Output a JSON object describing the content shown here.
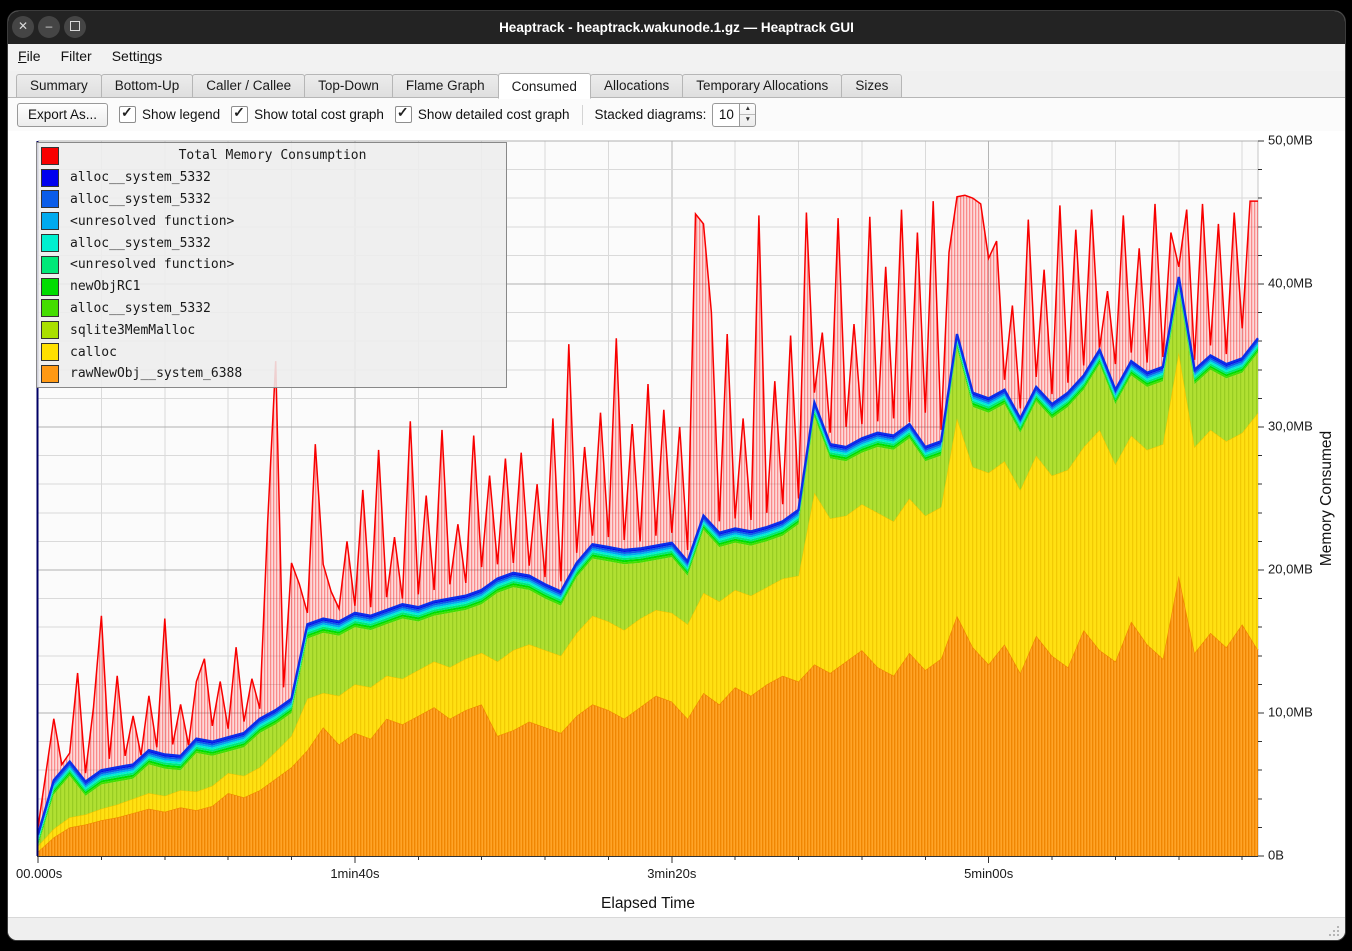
{
  "window": {
    "title": "Heaptrack - heaptrack.wakunode.1.gz — Heaptrack GUI",
    "controls": [
      "close",
      "minimize",
      "maximize"
    ]
  },
  "menu": {
    "items": [
      {
        "name": "file",
        "pre": "",
        "u": "F",
        "post": "ile"
      },
      {
        "name": "filter",
        "pre": "Filter",
        "u": "",
        "post": ""
      },
      {
        "name": "settings",
        "pre": "Setti",
        "u": "n",
        "post": "gs"
      }
    ]
  },
  "tabs": {
    "items": [
      "Summary",
      "Bottom-Up",
      "Caller / Callee",
      "Top-Down",
      "Flame Graph",
      "Consumed",
      "Allocations",
      "Temporary Allocations",
      "Sizes"
    ],
    "active_index": 5
  },
  "toolbar": {
    "export_label": "Export As...",
    "checkboxes": [
      {
        "label": "Show legend",
        "checked": true
      },
      {
        "label": "Show total cost graph",
        "checked": true
      },
      {
        "label": "Show detailed cost graph",
        "checked": true
      }
    ],
    "stacked_label": "Stacked diagrams:",
    "stacked_value": "10"
  },
  "legend": {
    "items": [
      {
        "label": "Total Memory Consumption",
        "color": "#f80000",
        "is_title": true
      },
      {
        "label": "alloc__system_5332",
        "color": "#0000ee"
      },
      {
        "label": "alloc__system_5332",
        "color": "#0a5ce8"
      },
      {
        "label": "<unresolved function>",
        "color": "#00aaee"
      },
      {
        "label": "alloc__system_5332",
        "color": "#00f0d0"
      },
      {
        "label": "<unresolved function>",
        "color": "#00e878"
      },
      {
        "label": "newObjRC1",
        "color": "#00dd00"
      },
      {
        "label": "alloc__system_5332",
        "color": "#44dd00"
      },
      {
        "label": "sqlite3MemMalloc",
        "color": "#aae000"
      },
      {
        "label": "calloc",
        "color": "#ffe000"
      },
      {
        "label": "rawNewObj__system_6388",
        "color": "#ff9913"
      }
    ]
  },
  "status_bar": {},
  "chart_data": {
    "type": "area",
    "stacked": true,
    "xlabel": "Elapsed Time",
    "ylabel": "Memory Consumed",
    "ylim": [
      0,
      50
    ],
    "x_max_s": 385,
    "y_major_ticks": [
      {
        "v": 0,
        "label": "0B"
      },
      {
        "v": 10,
        "label": "10,0MB"
      },
      {
        "v": 20,
        "label": "20,0MB"
      },
      {
        "v": 30,
        "label": "30,0MB"
      },
      {
        "v": 40,
        "label": "40,0MB"
      },
      {
        "v": 50,
        "label": "50,0MB"
      }
    ],
    "y_minor_step_mb": 2,
    "x_ticks": [
      {
        "s": 0,
        "label": "00.000s"
      },
      {
        "s": 100,
        "label": "1min40s"
      },
      {
        "s": 200,
        "label": "3min20s"
      },
      {
        "s": 300,
        "label": "5min00s"
      }
    ],
    "x_minor_step_s": 20,
    "grid": true,
    "legend_position": "top-left",
    "colors": {
      "total_line": "#f80000",
      "stack_top_line": "#0c2ee8",
      "axis_line_left": "#000066",
      "orange": "#ffa428",
      "orange_stripe": "#ef8400",
      "yellow": "#ffe012",
      "yellow_stripe": "#eec400",
      "chartreuse": "#b0e032",
      "chartreuse_stripe": "#93c81e",
      "red_fill": "rgba(255,80,80,0.20)",
      "red_stripe": "rgba(248,0,0,0.45)"
    },
    "series": {
      "x_step_s": 5,
      "stack_top_mb": [
        1.5,
        5.3,
        6.6,
        5.2,
        6.0,
        6.2,
        6.4,
        7.4,
        7.1,
        7.0,
        8.2,
        8.0,
        8.3,
        8.6,
        9.6,
        10.2,
        11.0,
        16.2,
        16.6,
        16.4,
        17.0,
        16.8,
        17.2,
        17.6,
        17.4,
        17.8,
        18.0,
        18.2,
        18.6,
        19.4,
        19.8,
        19.6,
        19.0,
        18.5,
        20.5,
        21.8,
        21.6,
        21.4,
        21.5,
        21.7,
        21.9,
        20.6,
        23.8,
        22.6,
        22.9,
        22.7,
        23.0,
        23.4,
        24.2,
        31.7,
        28.8,
        28.6,
        29.2,
        29.6,
        29.4,
        30.2,
        28.6,
        29.0,
        36.5,
        32.4,
        32.0,
        32.6,
        30.6,
        32.8,
        31.6,
        32.4,
        33.6,
        35.4,
        32.6,
        34.6,
        33.8,
        34.2,
        40.5,
        34.0,
        35.0,
        34.4,
        34.8,
        36.2
      ],
      "rawNewObj_top_mb": [
        0.3,
        1.3,
        2.0,
        2.2,
        2.5,
        2.7,
        3.0,
        3.3,
        3.1,
        3.4,
        3.2,
        3.5,
        4.4,
        4.1,
        4.6,
        5.4,
        6.2,
        7.4,
        9.0,
        7.8,
        8.6,
        8.2,
        9.6,
        9.2,
        9.8,
        10.4,
        9.6,
        10.2,
        10.6,
        8.4,
        8.8,
        9.4,
        9.0,
        8.6,
        9.8,
        10.6,
        10.2,
        9.6,
        10.4,
        11.2,
        10.8,
        9.6,
        11.4,
        10.6,
        11.8,
        11.2,
        12.0,
        12.6,
        12.2,
        13.4,
        12.8,
        13.6,
        14.4,
        13.2,
        12.6,
        14.2,
        13.0,
        13.8,
        16.8,
        14.6,
        13.4,
        14.8,
        12.8,
        15.4,
        14.0,
        13.2,
        15.8,
        14.4,
        13.6,
        16.4,
        14.8,
        13.8,
        19.6,
        14.2,
        15.6,
        14.6,
        16.2,
        14.4
      ],
      "calloc_top_mb": [
        0.7,
        1.9,
        2.7,
        2.9,
        3.3,
        3.6,
        4.0,
        4.4,
        4.2,
        4.6,
        4.5,
        4.9,
        5.8,
        5.6,
        6.2,
        7.3,
        8.4,
        11.0,
        11.4,
        11.2,
        12.0,
        11.8,
        12.6,
        12.4,
        13.0,
        13.6,
        13.2,
        13.8,
        14.2,
        13.6,
        14.4,
        14.8,
        14.4,
        14.0,
        15.6,
        16.8,
        16.4,
        15.8,
        16.6,
        17.2,
        17.0,
        16.2,
        18.4,
        17.8,
        18.6,
        18.2,
        18.8,
        19.4,
        19.6,
        25.4,
        23.6,
        23.8,
        24.6,
        24.0,
        23.4,
        25.0,
        23.8,
        24.4,
        30.6,
        27.2,
        26.8,
        27.6,
        25.6,
        28.0,
        26.6,
        27.0,
        28.6,
        29.8,
        27.4,
        29.4,
        28.4,
        28.8,
        35.2,
        28.6,
        29.8,
        29.0,
        29.6,
        31.0
      ],
      "thin_bands_below_top": [
        {
          "name": "alloc__system_5332",
          "color": "#44dd00",
          "mb": 0.14
        },
        {
          "name": "newObjRC1",
          "color": "#00dd00",
          "mb": 0.15
        },
        {
          "name": "<unresolved function>",
          "color": "#00e878",
          "mb": 0.15
        },
        {
          "name": "alloc__system_5332",
          "color": "#00f0d0",
          "mb": 0.14
        },
        {
          "name": "<unresolved function>",
          "color": "#00aaee",
          "mb": 0.14
        },
        {
          "name": "alloc__system_5332",
          "color": "#0a5ce8",
          "mb": 0.14
        },
        {
          "name": "alloc__system_5332",
          "color": "#0000ee",
          "mb": 0.14
        }
      ],
      "total": {
        "name": "Total Memory Consumption",
        "x_step_s": 2.5,
        "values_mb": [
          2.0,
          5.8,
          9.6,
          6.4,
          7.2,
          12.8,
          5.8,
          10.4,
          16.8,
          6.8,
          12.6,
          7.0,
          9.8,
          6.9,
          11.2,
          7.6,
          16.6,
          7.8,
          10.6,
          7.7,
          12.2,
          13.8,
          9.1,
          12.2,
          8.9,
          14.6,
          9.4,
          12.4,
          10.3,
          23.4,
          34.6,
          11.8,
          20.5,
          19.0,
          17.0,
          28.8,
          20.4,
          18.5,
          17.3,
          22.0,
          17.5,
          25.6,
          17.4,
          28.4,
          18.1,
          22.3,
          18.0,
          30.4,
          18.3,
          25.2,
          18.6,
          29.8,
          19.0,
          23.2,
          19.1,
          29.4,
          20.2,
          26.6,
          20.4,
          27.8,
          20.5,
          28.2,
          20.3,
          26.0,
          19.5,
          30.6,
          19.2,
          35.8,
          21.2,
          28.6,
          22.4,
          31.0,
          22.3,
          36.2,
          22.1,
          30.2,
          22.0,
          33.0,
          22.4,
          31.2,
          22.6,
          30.0,
          21.4,
          44.9,
          44.2,
          38.0,
          23.4,
          36.5,
          23.6,
          30.6,
          23.5,
          44.8,
          24.0,
          33.2,
          24.6,
          36.4,
          25.0,
          45.0,
          32.4,
          36.6,
          29.6,
          44.6,
          30.0,
          37.2,
          30.2,
          44.7,
          30.4,
          41.2,
          30.6,
          45.2,
          30.3,
          43.6,
          31.0,
          45.8,
          29.8,
          42.2,
          46.1,
          46.2,
          46.0,
          45.6,
          41.8,
          43.0,
          33.3,
          38.5,
          31.3,
          44.5,
          33.5,
          41.0,
          32.3,
          45.5,
          33.1,
          43.8,
          34.3,
          45.2,
          33.3,
          39.5,
          34.4,
          44.8,
          35.2,
          42.5,
          34.5,
          45.6,
          34.9,
          43.6,
          41.2,
          45.2,
          34.7,
          45.6,
          35.7,
          44.2,
          35.1,
          45.0,
          36.9,
          45.8
        ]
      }
    }
  }
}
